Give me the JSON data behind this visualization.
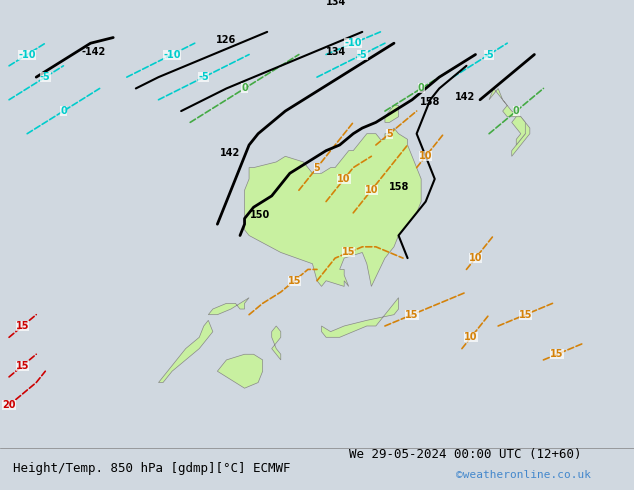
{
  "title_left": "Height/Temp. 850 hPa [gdmp][°C] ECMWF",
  "title_right": "We 29-05-2024 00:00 UTC (12+60)",
  "watermark": "©weatheronline.co.uk",
  "bg_color": "#d0d8e0",
  "land_color": "#c8f0a0",
  "ocean_color": "#d4dce8",
  "fig_width": 6.34,
  "fig_height": 4.9,
  "dpi": 100,
  "bottom_bar_color": "#e8e8e8",
  "title_fontsize": 9,
  "watermark_color": "#4488cc",
  "label_fontsize": 7
}
